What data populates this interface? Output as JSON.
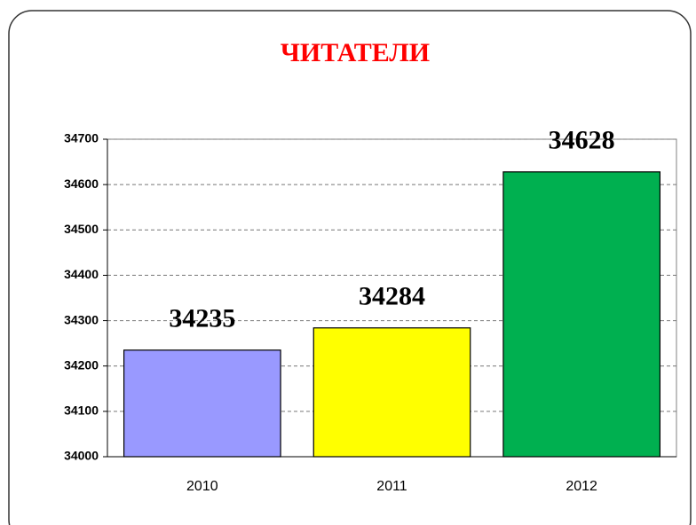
{
  "chart_data": {
    "type": "bar",
    "title": "ЧИТАТЕЛИ",
    "categories": [
      "2010",
      "2011",
      "2012"
    ],
    "values": [
      34235,
      34284,
      34628
    ],
    "colors": [
      "#9999ff",
      "#ffff00",
      "#00b050"
    ],
    "ylim": [
      34000,
      34700
    ],
    "yticks": [
      34000,
      34100,
      34200,
      34300,
      34400,
      34500,
      34600,
      34700
    ],
    "grid": true
  }
}
